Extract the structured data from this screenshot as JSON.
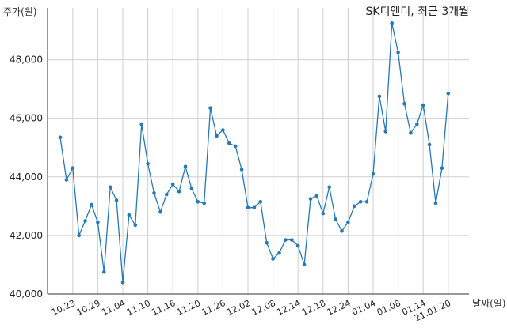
{
  "chart_data": {
    "type": "line",
    "title": "SK디앤디, 최근 3개월",
    "ylabel": "주가(원)",
    "xlabel": "날짜(일)",
    "ylim": [
      40000,
      49500
    ],
    "y_ticks": [
      "40,000",
      "42,000",
      "44,000",
      "46,000",
      "48,000"
    ],
    "y_tick_values": [
      40000,
      42000,
      44000,
      46000,
      48000
    ],
    "x_tick_labels": [
      "10.23",
      "10.29",
      "11.04",
      "11.10",
      "11.16",
      "11.20",
      "11.26",
      "12.02",
      "12.08",
      "12.14",
      "12.18",
      "12.24",
      "01.04",
      "01.08",
      "01.14",
      "21.01.20"
    ],
    "x_tick_index": [
      2,
      6,
      10,
      14,
      18,
      22,
      26,
      30,
      34,
      38,
      42,
      46,
      50,
      54,
      58,
      62
    ],
    "grid": true,
    "line_color": "#2878b4",
    "series": [
      {
        "values": [
          45350,
          43900,
          44300,
          42000,
          42500,
          43050,
          42450,
          40750,
          43650,
          43200,
          40400,
          42700,
          42350,
          45800,
          44450,
          43450,
          42800,
          43400,
          43750,
          43500,
          44350,
          43600,
          43150,
          43100,
          46350,
          45400,
          45600,
          45150,
          45050,
          44250,
          42950,
          42950,
          43150,
          41750,
          41200,
          41400,
          41850,
          41850,
          41650,
          41000,
          43250,
          43350,
          42750,
          43650,
          42550,
          42150,
          42450,
          43000,
          43150,
          43150,
          44100,
          46750,
          45550,
          49250,
          48250,
          46500,
          45500,
          45800,
          46450,
          45100,
          43100,
          44300,
          46850
        ]
      }
    ]
  }
}
